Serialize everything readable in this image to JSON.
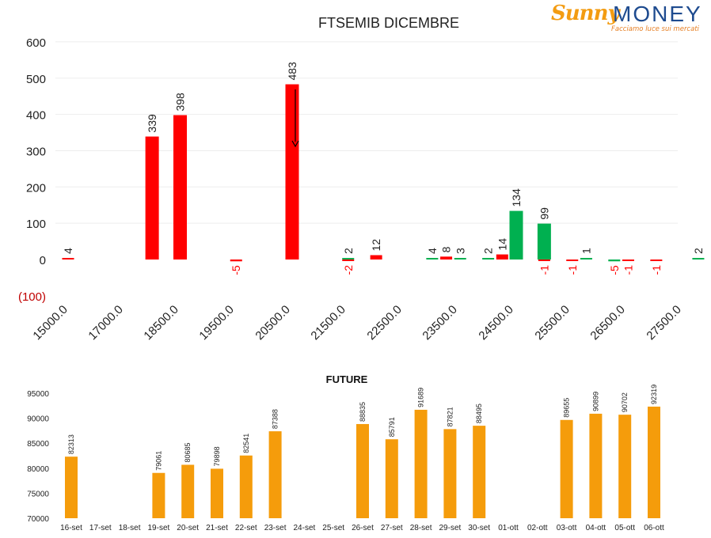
{
  "logo": {
    "sunny": "Sunny",
    "money": "MONEY",
    "tagline": "Facciamo luce sui mercati"
  },
  "colors": {
    "negative": "#ff0000",
    "positive": "#00b050",
    "future_bar": "#f59c0b",
    "neg_label": "#ff0000",
    "text": "#222222",
    "grid": "#ededed"
  },
  "chart_data": [
    {
      "type": "bar",
      "title": "FTSEMIB DICEMBRE",
      "xlabel": "",
      "ylabel": "",
      "ylim": [
        -100,
        600
      ],
      "yticks": [
        "(100)",
        "0",
        "100",
        "200",
        "300",
        "400",
        "500",
        "600"
      ],
      "ytick_values": [
        -100,
        0,
        100,
        200,
        300,
        400,
        500,
        600
      ],
      "xticks": [
        "15000.0",
        "17000.0",
        "18500.0",
        "19500.0",
        "20500.0",
        "21500.0",
        "22500.0",
        "23500.0",
        "24500.0",
        "25500.0",
        "26500.0",
        "27500.0"
      ],
      "grid": true,
      "legend": "none",
      "annotations": [
        "arrow pointing down above 21000 strike"
      ],
      "series": [
        {
          "color": "red",
          "bars": [
            {
              "x": 15000,
              "value": 4
            },
            {
              "x": 16500,
              "value": 339
            },
            {
              "x": 17000,
              "value": 398
            },
            {
              "x": 18000,
              "value": -5
            },
            {
              "x": 19000,
              "value": 483
            },
            {
              "x": 20000,
              "value": -2
            },
            {
              "x": 20500,
              "value": 12
            },
            {
              "x": 21750,
              "value": 8
            },
            {
              "x": 22750,
              "value": 14
            },
            {
              "x": 23500,
              "value": -1
            },
            {
              "x": 24000,
              "value": -1
            },
            {
              "x": 25000,
              "value": -1
            },
            {
              "x": 25500,
              "value": -1
            }
          ]
        },
        {
          "color": "green",
          "bars": [
            {
              "x": 20000,
              "value": 2
            },
            {
              "x": 21500,
              "value": 4
            },
            {
              "x": 22000,
              "value": 3
            },
            {
              "x": 22500,
              "value": 2
            },
            {
              "x": 23000,
              "value": 134
            },
            {
              "x": 23500,
              "value": 99
            },
            {
              "x": 24250,
              "value": 1
            },
            {
              "x": 24750,
              "value": -5
            },
            {
              "x": 26250,
              "value": 2
            }
          ]
        }
      ]
    },
    {
      "type": "bar",
      "title": "FUTURE",
      "xlabel": "",
      "ylabel": "",
      "ylim": [
        70000,
        95000
      ],
      "yticks": [
        "70000",
        "75000",
        "80000",
        "85000",
        "90000",
        "95000"
      ],
      "ytick_values": [
        70000,
        75000,
        80000,
        85000,
        90000,
        95000
      ],
      "categories": [
        "16-set",
        "17-set",
        "18-set",
        "19-set",
        "20-set",
        "21-set",
        "22-set",
        "23-set",
        "24-set",
        "25-set",
        "26-set",
        "27-set",
        "28-set",
        "29-set",
        "30-set",
        "01-ott",
        "02-ott",
        "03-ott",
        "04-ott",
        "05-ott",
        "06-ott"
      ],
      "values": [
        82313,
        null,
        null,
        79061,
        80685,
        79898,
        82541,
        87388,
        null,
        null,
        88835,
        85791,
        91689,
        87821,
        88495,
        null,
        null,
        89655,
        90899,
        90702,
        92319
      ],
      "value_labels": [
        "82313",
        "",
        "",
        "79061",
        "80685",
        "79898",
        "82541",
        "87388",
        "",
        "",
        "88835",
        "85791",
        "91689",
        "87821",
        "88495",
        "",
        "",
        "89655",
        "90899",
        "90702",
        "92319"
      ],
      "grid": false,
      "legend": "none"
    }
  ]
}
